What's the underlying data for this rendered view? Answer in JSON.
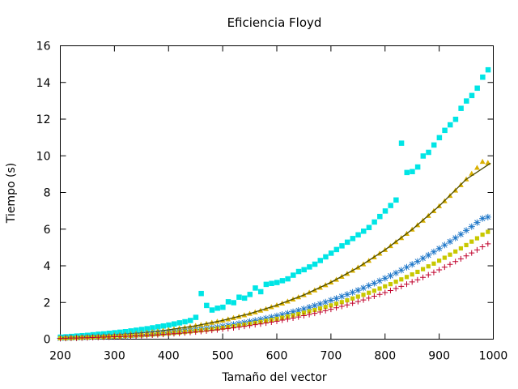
{
  "chart_data": {
    "type": "scatter",
    "title": "Eficiencia Floyd",
    "xlabel": "Tamaño del vector",
    "ylabel": "Tiempo (s)",
    "xlim": [
      200,
      1000
    ],
    "ylim": [
      0,
      16
    ],
    "xticks": [
      200,
      300,
      400,
      500,
      600,
      700,
      800,
      900,
      1000
    ],
    "yticks": [
      0,
      2,
      4,
      6,
      8,
      10,
      12,
      14,
      16
    ],
    "grid": false,
    "legend": "none",
    "x": [
      200,
      210,
      220,
      230,
      240,
      250,
      260,
      270,
      280,
      290,
      300,
      310,
      320,
      330,
      340,
      350,
      360,
      370,
      380,
      390,
      400,
      410,
      420,
      430,
      440,
      450,
      460,
      470,
      480,
      490,
      500,
      510,
      520,
      530,
      540,
      550,
      560,
      570,
      580,
      590,
      600,
      610,
      620,
      630,
      640,
      650,
      660,
      670,
      680,
      690,
      700,
      710,
      720,
      730,
      740,
      750,
      760,
      770,
      780,
      790,
      800,
      810,
      820,
      830,
      840,
      850,
      860,
      870,
      880,
      890,
      900,
      910,
      920,
      930,
      940,
      950,
      960,
      970,
      980,
      990
    ],
    "series": [
      {
        "color": "#00e5e5",
        "marker": "square",
        "values": [
          0.12,
          0.14,
          0.16,
          0.18,
          0.2,
          0.22,
          0.25,
          0.28,
          0.3,
          0.33,
          0.36,
          0.39,
          0.42,
          0.46,
          0.5,
          0.54,
          0.58,
          0.63,
          0.68,
          0.73,
          0.78,
          0.84,
          0.9,
          0.96,
          1.03,
          1.2,
          2.5,
          1.85,
          1.6,
          1.7,
          1.75,
          2.05,
          2.0,
          2.3,
          2.25,
          2.45,
          2.8,
          2.6,
          3.0,
          3.05,
          3.1,
          3.2,
          3.3,
          3.5,
          3.7,
          3.8,
          3.95,
          4.1,
          4.3,
          4.5,
          4.7,
          4.9,
          5.1,
          5.3,
          5.5,
          5.7,
          5.9,
          6.1,
          6.4,
          6.7,
          7.0,
          7.3,
          7.6,
          10.7,
          9.1,
          9.15,
          9.4,
          10.0,
          10.2,
          10.6,
          11.0,
          11.4,
          11.7,
          12.0,
          12.6,
          13.0,
          13.3,
          13.7,
          14.3,
          14.7
        ]
      },
      {
        "color": "#dab000",
        "marker": "triangle",
        "values": [
          0.08,
          0.09,
          0.1,
          0.11,
          0.12,
          0.13,
          0.15,
          0.16,
          0.18,
          0.2,
          0.22,
          0.24,
          0.26,
          0.29,
          0.31,
          0.34,
          0.37,
          0.4,
          0.43,
          0.47,
          0.51,
          0.55,
          0.59,
          0.63,
          0.68,
          0.73,
          0.78,
          0.84,
          0.9,
          0.96,
          1.02,
          1.09,
          1.16,
          1.23,
          1.31,
          1.39,
          1.47,
          1.56,
          1.65,
          1.75,
          1.85,
          1.95,
          2.06,
          2.17,
          2.29,
          2.41,
          2.54,
          2.67,
          2.81,
          2.95,
          3.1,
          3.25,
          3.41,
          3.57,
          3.74,
          3.91,
          4.09,
          4.28,
          4.47,
          4.67,
          4.87,
          5.08,
          5.3,
          5.52,
          5.75,
          5.98,
          6.22,
          6.47,
          6.73,
          6.99,
          7.26,
          7.53,
          7.82,
          8.11,
          8.41,
          8.72,
          9.03,
          9.35,
          9.68,
          9.62
        ]
      },
      {
        "color": "#1f77c8",
        "marker": "asterisk",
        "values": [
          0.05,
          0.06,
          0.07,
          0.08,
          0.09,
          0.1,
          0.11,
          0.12,
          0.13,
          0.14,
          0.15,
          0.17,
          0.18,
          0.2,
          0.22,
          0.24,
          0.26,
          0.28,
          0.3,
          0.33,
          0.35,
          0.38,
          0.41,
          0.44,
          0.47,
          0.51,
          0.54,
          0.58,
          0.62,
          0.66,
          0.71,
          0.75,
          0.8,
          0.85,
          0.9,
          0.96,
          1.02,
          1.08,
          1.14,
          1.2,
          1.27,
          1.34,
          1.41,
          1.49,
          1.57,
          1.65,
          1.74,
          1.83,
          1.92,
          2.02,
          2.12,
          2.22,
          2.33,
          2.44,
          2.55,
          2.67,
          2.79,
          2.92,
          3.05,
          3.18,
          3.32,
          3.46,
          3.61,
          3.76,
          3.92,
          4.08,
          4.24,
          4.41,
          4.58,
          4.76,
          4.94,
          5.13,
          5.32,
          5.52,
          5.72,
          5.93,
          6.14,
          6.36,
          6.58,
          6.66
        ]
      },
      {
        "color": "#c8c800",
        "marker": "dot",
        "values": [
          0.05,
          0.05,
          0.06,
          0.07,
          0.08,
          0.09,
          0.1,
          0.11,
          0.12,
          0.13,
          0.14,
          0.15,
          0.17,
          0.18,
          0.2,
          0.21,
          0.23,
          0.25,
          0.27,
          0.29,
          0.31,
          0.34,
          0.36,
          0.39,
          0.42,
          0.45,
          0.48,
          0.51,
          0.55,
          0.58,
          0.62,
          0.66,
          0.7,
          0.75,
          0.79,
          0.84,
          0.89,
          0.94,
          1.0,
          1.05,
          1.11,
          1.17,
          1.24,
          1.3,
          1.37,
          1.44,
          1.52,
          1.59,
          1.67,
          1.76,
          1.84,
          1.93,
          2.02,
          2.12,
          2.22,
          2.32,
          2.42,
          2.53,
          2.64,
          2.76,
          2.88,
          3.0,
          3.13,
          3.26,
          3.39,
          3.53,
          3.67,
          3.82,
          3.97,
          4.12,
          4.28,
          4.44,
          4.61,
          4.78,
          4.95,
          5.13,
          5.32,
          5.5,
          5.7,
          5.85
        ]
      },
      {
        "color": "#c0002b",
        "marker": "plus",
        "values": [
          0.04,
          0.05,
          0.06,
          0.06,
          0.07,
          0.08,
          0.09,
          0.1,
          0.11,
          0.12,
          0.13,
          0.14,
          0.15,
          0.16,
          0.17,
          0.19,
          0.2,
          0.22,
          0.24,
          0.26,
          0.28,
          0.3,
          0.32,
          0.34,
          0.37,
          0.39,
          0.42,
          0.45,
          0.48,
          0.51,
          0.55,
          0.58,
          0.62,
          0.66,
          0.7,
          0.74,
          0.79,
          0.83,
          0.88,
          0.93,
          0.98,
          1.04,
          1.09,
          1.15,
          1.21,
          1.28,
          1.34,
          1.41,
          1.48,
          1.55,
          1.63,
          1.71,
          1.79,
          1.87,
          1.96,
          2.05,
          2.14,
          2.24,
          2.34,
          2.44,
          2.54,
          2.65,
          2.76,
          2.88,
          3.0,
          3.12,
          3.24,
          3.37,
          3.51,
          3.64,
          3.78,
          3.93,
          4.08,
          4.23,
          4.38,
          4.54,
          4.7,
          4.87,
          5.04,
          5.2
        ]
      }
    ],
    "fit_curve": {
      "color": "#4a4a00",
      "x": [
        200,
        250,
        300,
        350,
        400,
        450,
        500,
        550,
        600,
        650,
        700,
        750,
        800,
        850,
        900,
        950,
        995
      ],
      "y": [
        0.08,
        0.14,
        0.22,
        0.34,
        0.51,
        0.73,
        1.02,
        1.39,
        1.85,
        2.41,
        3.1,
        3.91,
        4.87,
        5.98,
        7.26,
        8.72,
        9.6
      ]
    }
  }
}
